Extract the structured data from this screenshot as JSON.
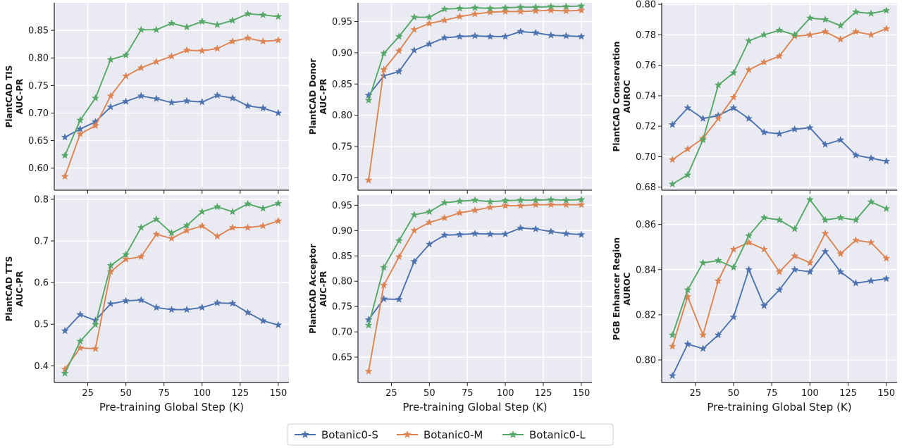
{
  "chart_data": {
    "type": "line",
    "x_shared_label": "Pre-training Global Step (K)",
    "legend": [
      {
        "name": "Botanic0-S",
        "color": "#4c72b0"
      },
      {
        "name": "Botanic0-M",
        "color": "#dd8452"
      },
      {
        "name": "Botanic0-L",
        "color": "#55a868"
      }
    ],
    "x": [
      10,
      20,
      30,
      40,
      50,
      60,
      70,
      80,
      90,
      100,
      110,
      120,
      130,
      140,
      150
    ],
    "xlim": [
      3,
      157
    ],
    "xticks": [
      25,
      50,
      75,
      100,
      125,
      150
    ],
    "panels": [
      {
        "ylabel_lines": [
          "PlantCAD TIS",
          "AUC-PR"
        ],
        "ylim": [
          0.56,
          0.9
        ],
        "yticks": [
          "0.60",
          "0.65",
          "0.70",
          "0.75",
          "0.80",
          "0.85"
        ],
        "show_xlabel": false,
        "series": [
          {
            "name": "Botanic0-S",
            "values": [
              0.656,
              0.671,
              0.684,
              0.711,
              0.721,
              0.731,
              0.726,
              0.719,
              0.722,
              0.72,
              0.732,
              0.727,
              0.713,
              0.709,
              0.7
            ]
          },
          {
            "name": "Botanic0-M",
            "values": [
              0.585,
              0.662,
              0.677,
              0.731,
              0.767,
              0.782,
              0.793,
              0.803,
              0.814,
              0.813,
              0.817,
              0.83,
              0.836,
              0.83,
              0.832
            ]
          },
          {
            "name": "Botanic0-L",
            "values": [
              0.623,
              0.687,
              0.727,
              0.797,
              0.805,
              0.851,
              0.851,
              0.863,
              0.856,
              0.866,
              0.86,
              0.868,
              0.88,
              0.878,
              0.875
            ]
          }
        ]
      },
      {
        "ylabel_lines": [
          "PlantCAD Donor",
          "AUC-PR"
        ],
        "ylim": [
          0.68,
          0.98
        ],
        "yticks": [
          "0.70",
          "0.75",
          "0.80",
          "0.85",
          "0.90",
          "0.95"
        ],
        "show_xlabel": false,
        "series": [
          {
            "name": "Botanic0-S",
            "values": [
              0.832,
              0.863,
              0.87,
              0.904,
              0.914,
              0.924,
              0.926,
              0.927,
              0.926,
              0.926,
              0.934,
              0.932,
              0.928,
              0.927,
              0.926
            ]
          },
          {
            "name": "Botanic0-M",
            "values": [
              0.696,
              0.873,
              0.903,
              0.937,
              0.947,
              0.952,
              0.958,
              0.962,
              0.965,
              0.966,
              0.966,
              0.967,
              0.968,
              0.967,
              0.968
            ]
          },
          {
            "name": "Botanic0-L",
            "values": [
              0.824,
              0.899,
              0.926,
              0.957,
              0.957,
              0.97,
              0.971,
              0.972,
              0.971,
              0.972,
              0.973,
              0.973,
              0.974,
              0.974,
              0.975
            ]
          }
        ]
      },
      {
        "ylabel_lines": [
          "PlantCAD Conservation",
          "AUROC"
        ],
        "ylim": [
          0.678,
          0.801
        ],
        "yticks": [
          "0.68",
          "0.70",
          "0.72",
          "0.74",
          "0.76",
          "0.78",
          "0.80"
        ],
        "show_xlabel": false,
        "series": [
          {
            "name": "Botanic0-S",
            "values": [
              0.721,
              0.732,
              0.725,
              0.727,
              0.732,
              0.725,
              0.716,
              0.715,
              0.718,
              0.719,
              0.708,
              0.711,
              0.701,
              0.699,
              0.697
            ]
          },
          {
            "name": "Botanic0-M",
            "values": [
              0.698,
              0.705,
              0.712,
              0.725,
              0.739,
              0.757,
              0.762,
              0.766,
              0.779,
              0.78,
              0.782,
              0.777,
              0.782,
              0.78,
              0.784
            ]
          },
          {
            "name": "Botanic0-L",
            "values": [
              0.682,
              0.688,
              0.711,
              0.747,
              0.755,
              0.776,
              0.78,
              0.783,
              0.78,
              0.791,
              0.79,
              0.786,
              0.795,
              0.794,
              0.796
            ]
          }
        ]
      },
      {
        "ylabel_lines": [
          "PlantCAD TTS",
          "AUC-PR"
        ],
        "ylim": [
          0.36,
          0.81
        ],
        "yticks": [
          "0.4",
          "0.5",
          "0.6",
          "0.7",
          "0.8"
        ],
        "show_xlabel": true,
        "series": [
          {
            "name": "Botanic0-S",
            "values": [
              0.484,
              0.523,
              0.509,
              0.549,
              0.556,
              0.558,
              0.54,
              0.535,
              0.535,
              0.54,
              0.551,
              0.55,
              0.528,
              0.508,
              0.498
            ]
          },
          {
            "name": "Botanic0-M",
            "values": [
              0.392,
              0.443,
              0.441,
              0.626,
              0.656,
              0.662,
              0.716,
              0.706,
              0.725,
              0.736,
              0.711,
              0.732,
              0.732,
              0.736,
              0.748
            ]
          },
          {
            "name": "Botanic0-L",
            "values": [
              0.382,
              0.459,
              0.499,
              0.641,
              0.667,
              0.732,
              0.752,
              0.719,
              0.737,
              0.77,
              0.782,
              0.77,
              0.789,
              0.778,
              0.79
            ]
          }
        ]
      },
      {
        "ylabel_lines": [
          "PlantCAD Acceptor",
          "AUC-PR"
        ],
        "ylim": [
          0.6,
          0.97
        ],
        "yticks": [
          "0.65",
          "0.70",
          "0.75",
          "0.80",
          "0.85",
          "0.90",
          "0.95"
        ],
        "show_xlabel": true,
        "series": [
          {
            "name": "Botanic0-S",
            "values": [
              0.724,
              0.765,
              0.764,
              0.839,
              0.873,
              0.891,
              0.892,
              0.894,
              0.893,
              0.893,
              0.905,
              0.903,
              0.898,
              0.894,
              0.892
            ]
          },
          {
            "name": "Botanic0-M",
            "values": [
              0.622,
              0.792,
              0.848,
              0.9,
              0.916,
              0.925,
              0.935,
              0.94,
              0.946,
              0.949,
              0.949,
              0.951,
              0.951,
              0.951,
              0.951
            ]
          },
          {
            "name": "Botanic0-L",
            "values": [
              0.713,
              0.827,
              0.88,
              0.931,
              0.937,
              0.955,
              0.958,
              0.96,
              0.957,
              0.959,
              0.96,
              0.96,
              0.961,
              0.96,
              0.961
            ]
          }
        ]
      },
      {
        "ylabel_lines": [
          "PGB Enhancer Region",
          "AUROC"
        ],
        "ylim": [
          0.79,
          0.873
        ],
        "yticks": [
          "0.80",
          "0.82",
          "0.84",
          "0.86"
        ],
        "show_xlabel": true,
        "series": [
          {
            "name": "Botanic0-S",
            "values": [
              0.793,
              0.807,
              0.805,
              0.811,
              0.819,
              0.84,
              0.824,
              0.831,
              0.84,
              0.839,
              0.848,
              0.839,
              0.834,
              0.835,
              0.836
            ]
          },
          {
            "name": "Botanic0-M",
            "values": [
              0.806,
              0.828,
              0.811,
              0.835,
              0.849,
              0.852,
              0.849,
              0.839,
              0.846,
              0.843,
              0.856,
              0.847,
              0.853,
              0.852,
              0.845
            ]
          },
          {
            "name": "Botanic0-L",
            "values": [
              0.811,
              0.831,
              0.843,
              0.844,
              0.841,
              0.855,
              0.863,
              0.862,
              0.858,
              0.871,
              0.862,
              0.863,
              0.862,
              0.87,
              0.867
            ]
          }
        ]
      }
    ]
  }
}
